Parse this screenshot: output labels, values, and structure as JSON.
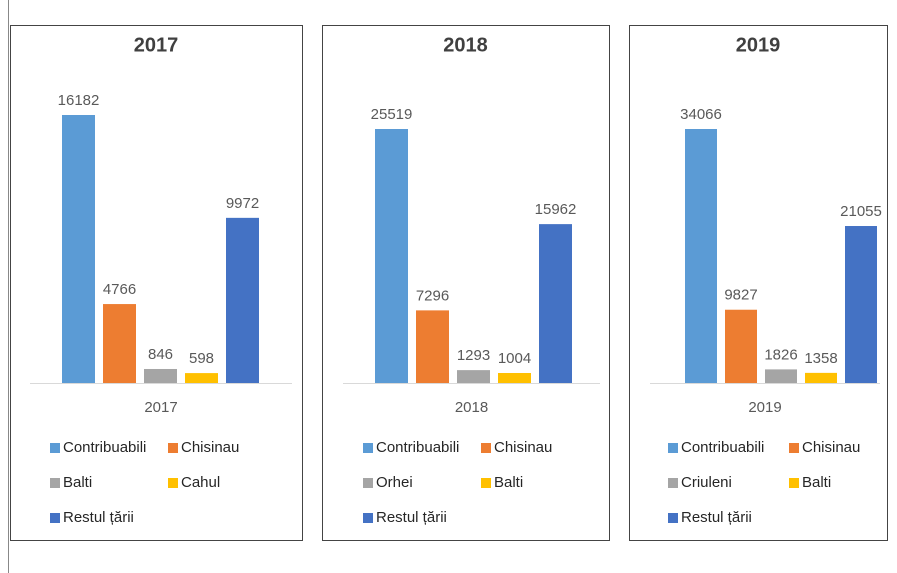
{
  "chart_data": [
    {
      "type": "bar",
      "title": "2017",
      "categories": [
        "2017"
      ],
      "series": [
        {
          "name": "Contribuabili",
          "color": "#5b9bd5",
          "values": [
            16182
          ]
        },
        {
          "name": "Chisinau",
          "color": "#ed7d31",
          "values": [
            4766
          ]
        },
        {
          "name": "Balti",
          "color": "#a5a5a5",
          "values": [
            846
          ]
        },
        {
          "name": "Cahul",
          "color": "#ffc000",
          "values": [
            598
          ]
        },
        {
          "name": "Restul țării",
          "color": "#4472c4",
          "values": [
            9972
          ]
        }
      ]
    },
    {
      "type": "bar",
      "title": "2018",
      "categories": [
        "2018"
      ],
      "series": [
        {
          "name": "Contribuabili",
          "color": "#5b9bd5",
          "values": [
            25519
          ]
        },
        {
          "name": "Chisinau",
          "color": "#ed7d31",
          "values": [
            7296
          ]
        },
        {
          "name": "Orhei",
          "color": "#a5a5a5",
          "values": [
            1293
          ]
        },
        {
          "name": "Balti",
          "color": "#ffc000",
          "values": [
            1004
          ]
        },
        {
          "name": "Restul țării",
          "color": "#4472c4",
          "values": [
            15962
          ]
        }
      ]
    },
    {
      "type": "bar",
      "title": "2019",
      "categories": [
        "2019"
      ],
      "series": [
        {
          "name": "Contribuabili",
          "color": "#5b9bd5",
          "values": [
            34066
          ]
        },
        {
          "name": "Chisinau",
          "color": "#ed7d31",
          "values": [
            9827
          ]
        },
        {
          "name": "Criuleni",
          "color": "#a5a5a5",
          "values": [
            1826
          ]
        },
        {
          "name": "Balti",
          "color": "#ffc000",
          "values": [
            1358
          ]
        },
        {
          "name": "Restul țării",
          "color": "#4472c4",
          "values": [
            21055
          ]
        }
      ]
    }
  ]
}
